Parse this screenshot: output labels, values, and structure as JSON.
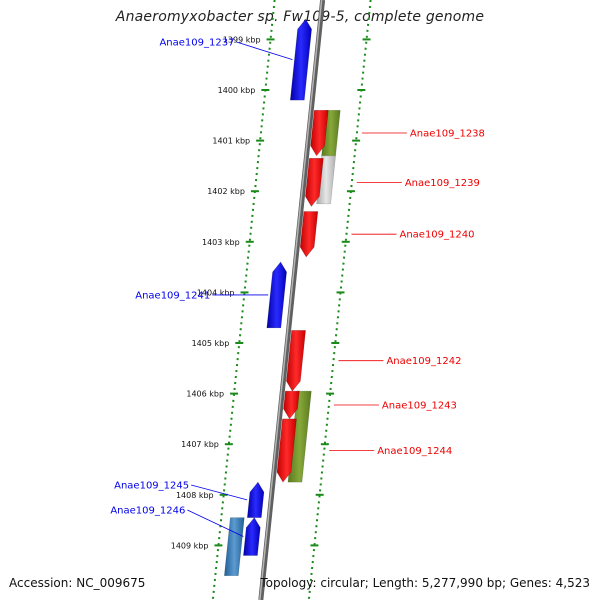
{
  "title": "Anaeromyxobacter sp. Fw109-5, complete genome",
  "footer": {
    "accession": "Accession: NC_009675",
    "summary": "Topology: circular; Length: 5,277,990 bp; Genes: 4,523"
  },
  "colors": {
    "forward_gene": "#0000ee",
    "reverse_gene": "#ee0000",
    "cds_olive": "#6b8e23",
    "cds_gray": "#c0c0c0",
    "backbone": "#888888",
    "ruler": "#1a8a1a"
  },
  "ticks": [
    {
      "label": "1399 kbp",
      "kbp": 1399
    },
    {
      "label": "1400 kbp",
      "kbp": 1400
    },
    {
      "label": "1401 kbp",
      "kbp": 1401
    },
    {
      "label": "1402 kbp",
      "kbp": 1402
    },
    {
      "label": "1403 kbp",
      "kbp": 1403
    },
    {
      "label": "1404 kbp",
      "kbp": 1404
    },
    {
      "label": "1405 kbp",
      "kbp": 1405
    },
    {
      "label": "1406 kbp",
      "kbp": 1406
    },
    {
      "label": "1407 kbp",
      "kbp": 1407
    },
    {
      "label": "1408 kbp",
      "kbp": 1408
    },
    {
      "label": "1409 kbp",
      "kbp": 1409
    }
  ],
  "genes": [
    {
      "name": "Anae109_1237",
      "strand": "+",
      "start_kbp": 1398.6,
      "end_kbp": 1400.2
    },
    {
      "name": "Anae109_1238",
      "strand": "-",
      "start_kbp": 1400.4,
      "end_kbp": 1401.3
    },
    {
      "name": "Anae109_1239",
      "strand": "-",
      "start_kbp": 1401.35,
      "end_kbp": 1402.3
    },
    {
      "name": "Anae109_1240",
      "strand": "-",
      "start_kbp": 1402.4,
      "end_kbp": 1403.3
    },
    {
      "name": "Anae109_1241",
      "strand": "+",
      "start_kbp": 1403.4,
      "end_kbp": 1404.7
    },
    {
      "name": "Anae109_1242",
      "strand": "-",
      "start_kbp": 1404.75,
      "end_kbp": 1405.95
    },
    {
      "name": "Anae109_1243",
      "strand": "-",
      "start_kbp": 1405.95,
      "end_kbp": 1406.5
    },
    {
      "name": "Anae109_1244",
      "strand": "-",
      "start_kbp": 1406.5,
      "end_kbp": 1407.75
    },
    {
      "name": "Anae109_1245",
      "strand": "+",
      "start_kbp": 1407.75,
      "end_kbp": 1408.45
    },
    {
      "name": "Anae109_1246",
      "strand": "+",
      "start_kbp": 1408.45,
      "end_kbp": 1409.2
    }
  ],
  "cds_features": [
    {
      "color": "olive",
      "start_kbp": 1400.4,
      "end_kbp": 1401.3
    },
    {
      "color": "gray",
      "start_kbp": 1401.3,
      "end_kbp": 1402.25
    },
    {
      "color": "olive",
      "start_kbp": 1405.95,
      "end_kbp": 1407.75
    },
    {
      "color": "steelblue",
      "start_kbp": 1408.45,
      "end_kbp": 1409.6
    }
  ]
}
